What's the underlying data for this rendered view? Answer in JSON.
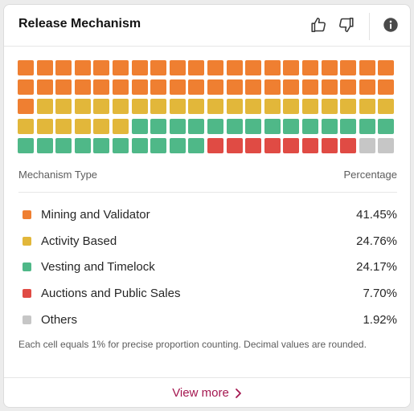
{
  "card": {
    "title": "Release Mechanism"
  },
  "header_icons": [
    "thumbs-up-icon",
    "thumbs-down-icon",
    "info-icon"
  ],
  "table": {
    "col_type": "Mechanism Type",
    "col_pct": "Percentage"
  },
  "legend": [
    {
      "label": "Mining and Validator",
      "value": "41.45%",
      "color": "#ef7f31",
      "cells": 41
    },
    {
      "label": "Activity Based",
      "value": "24.76%",
      "color": "#e2b73a",
      "cells": 25
    },
    {
      "label": "Vesting and Timelock",
      "value": "24.17%",
      "color": "#4fb888",
      "cells": 24
    },
    {
      "label": "Auctions and Public Sales",
      "value": "7.70%",
      "color": "#e04b44",
      "cells": 8
    },
    {
      "label": "Others",
      "value": "1.92%",
      "color": "#c6c6c6",
      "cells": 2
    }
  ],
  "chart_data": {
    "type": "waffle",
    "cells_total": 100,
    "grid": {
      "rows": 5,
      "cols": 20
    },
    "series": [
      {
        "name": "Mining and Validator",
        "value": 41.45,
        "cells": 41
      },
      {
        "name": "Activity Based",
        "value": 24.76,
        "cells": 25
      },
      {
        "name": "Vesting and Timelock",
        "value": 24.17,
        "cells": 24
      },
      {
        "name": "Auctions and Public Sales",
        "value": 7.7,
        "cells": 8
      },
      {
        "name": "Others",
        "value": 1.92,
        "cells": 2
      }
    ]
  },
  "note": "Each cell equals 1% for precise proportion counting. Decimal values are rounded.",
  "footer": {
    "view_more": "View more"
  }
}
